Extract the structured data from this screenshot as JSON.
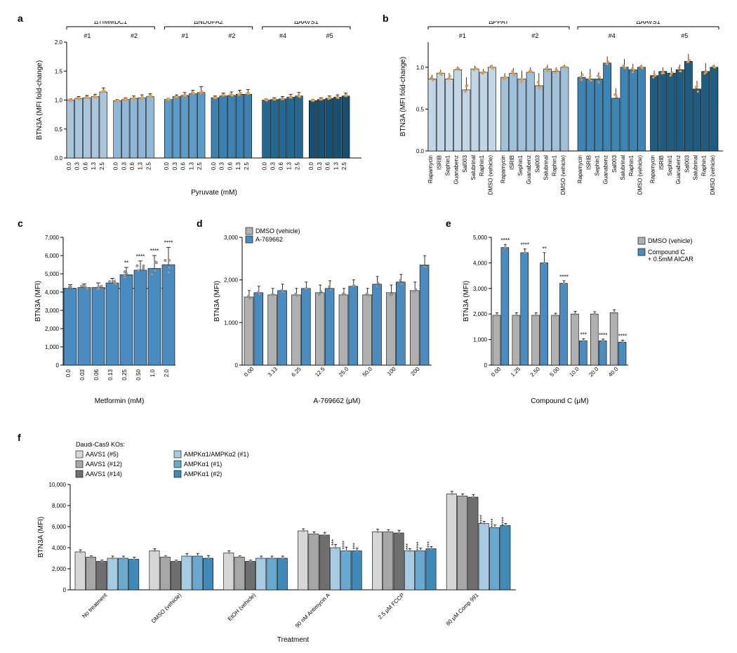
{
  "palette": {
    "groupColors6": [
      "#a9c6de",
      "#8fb8d8",
      "#5c9cc7",
      "#3b82b3",
      "#246994",
      "#184f73"
    ],
    "groupColors4": [
      "#c2d6e6",
      "#a0c1d9",
      "#3d85b4",
      "#1e5c82"
    ],
    "blue": "#4a8cc0",
    "grey": "#b0b0b0",
    "kos6": [
      "#d6d6d6",
      "#a7a7a7",
      "#6f6f6f",
      "#a6cbe3",
      "#6aa9cf",
      "#3f8ab9"
    ]
  },
  "panel_a": {
    "label": "a",
    "ylabel": "BTN3A (MFI fold-change)",
    "xlabel": "Pyruvate (mM)",
    "ylim": [
      0.0,
      2.0
    ],
    "ytick_step": 0.5,
    "doses": [
      "0.0",
      "0.3",
      "0.6",
      "1.3",
      "2.5"
    ],
    "groups": [
      "ΔTIMMDC1",
      "ΔNDUFA2",
      "ΔAAVS1"
    ],
    "subgroups": [
      [
        "#1",
        "#2"
      ],
      [
        "#1",
        "#2"
      ],
      [
        "#4",
        "#5"
      ]
    ],
    "values": [
      [
        [
          1.0,
          1.03,
          1.04,
          1.06,
          1.14
        ],
        [
          0.99,
          1.01,
          1.03,
          1.04,
          1.06
        ]
      ],
      [
        [
          1.01,
          1.06,
          1.08,
          1.11,
          1.13
        ],
        [
          1.04,
          1.07,
          1.08,
          1.1,
          1.1
        ]
      ],
      [
        [
          1.0,
          1.01,
          1.02,
          1.05,
          1.07
        ],
        [
          0.99,
          1.01,
          1.03,
          1.05,
          1.07
        ]
      ]
    ],
    "errors": [
      [
        [
          0.02,
          0.03,
          0.04,
          0.04,
          0.07
        ],
        [
          0.02,
          0.03,
          0.04,
          0.05,
          0.05
        ]
      ],
      [
        [
          0.02,
          0.03,
          0.05,
          0.06,
          0.1
        ],
        [
          0.03,
          0.05,
          0.06,
          0.07,
          0.08
        ]
      ],
      [
        [
          0.02,
          0.03,
          0.04,
          0.05,
          0.06
        ],
        [
          0.02,
          0.03,
          0.04,
          0.04,
          0.05
        ]
      ]
    ]
  },
  "panel_b": {
    "label": "b",
    "ylabel": "BTN3A (MFI fold-change)",
    "ylim": [
      0.0,
      1.3
    ],
    "yticks": [
      0.0,
      0.5,
      1.0
    ],
    "x_labels": [
      "Rapamycin",
      "ISRIB",
      "Sephin1",
      "Guanabenz",
      "Sal003",
      "Salubrinal",
      "Raphin1",
      "DMSO (vehicle)"
    ],
    "groups": [
      "ΔPPAT",
      "ΔAAVS1"
    ],
    "subgroups": [
      [
        "#1",
        "#2"
      ],
      [
        "#4",
        "#5"
      ]
    ],
    "values": [
      [
        [
          0.86,
          0.93,
          0.86,
          0.97,
          0.73,
          0.98,
          0.94,
          1.0
        ],
        [
          0.88,
          0.93,
          0.86,
          0.94,
          0.78,
          0.98,
          0.95,
          1.0
        ]
      ],
      [
        [
          0.88,
          0.86,
          0.86,
          1.05,
          0.63,
          1.0,
          0.97,
          1.0
        ],
        [
          0.9,
          0.95,
          0.93,
          0.97,
          1.07,
          0.74,
          0.95,
          1.0
        ]
      ]
    ],
    "errors": [
      [
        [
          0.05,
          0.04,
          0.07,
          0.04,
          0.15,
          0.04,
          0.04,
          0.03
        ],
        [
          0.05,
          0.06,
          0.1,
          0.06,
          0.15,
          0.05,
          0.05,
          0.03
        ]
      ],
      [
        [
          0.07,
          0.12,
          0.08,
          0.08,
          0.12,
          0.1,
          0.07,
          0.03
        ],
        [
          0.06,
          0.05,
          0.07,
          0.06,
          0.09,
          0.1,
          0.1,
          0.03
        ]
      ]
    ]
  },
  "panel_c": {
    "label": "c",
    "ylabel": "BTN3A (MFI)",
    "xlabel": "Metformin (mM)",
    "ylim": [
      0,
      7000
    ],
    "ytick_step": 1000,
    "doses": [
      "0.0",
      "0.03",
      "0.06",
      "0.13",
      "0.25",
      "0.50",
      "1.0",
      "2.0"
    ],
    "values": [
      4200,
      4250,
      4250,
      4500,
      4950,
      5200,
      5300,
      5500
    ],
    "errors": [
      200,
      200,
      250,
      250,
      400,
      500,
      700,
      950
    ],
    "baseline": 4200,
    "sig": {
      "4": "**",
      "5": "****",
      "6": "****",
      "7": "****"
    }
  },
  "panel_d": {
    "label": "d",
    "ylabel": "BTN3A (MFI)",
    "xlabel": "A-769662 (μM)",
    "ylim": [
      0,
      3000
    ],
    "ytick_step": 1000,
    "doses": [
      "0.00",
      "3.13",
      "6.25",
      "12.5",
      "25.0",
      "50.0",
      "100",
      "200"
    ],
    "legend": [
      {
        "label": "DMSO (vehicle)",
        "color": "grey"
      },
      {
        "label": "A-769662",
        "color": "blue"
      }
    ],
    "values_grey": [
      1600,
      1650,
      1650,
      1700,
      1650,
      1650,
      1700,
      1750
    ],
    "values_blue": [
      1700,
      1750,
      1800,
      1800,
      1850,
      1900,
      1950,
      2350
    ],
    "errors_grey": [
      150,
      150,
      150,
      180,
      150,
      150,
      180,
      200
    ],
    "errors_blue": [
      150,
      150,
      150,
      180,
      150,
      180,
      180,
      220
    ]
  },
  "panel_e": {
    "label": "e",
    "ylabel": "BTN3A (MFI)",
    "xlabel": "Compound C (μM)",
    "ylim": [
      0,
      5000
    ],
    "ytick_step": 1000,
    "doses": [
      "0.00",
      "1.25",
      "2.50",
      "5.00",
      "10.0",
      "20.0",
      "40.0"
    ],
    "legend": [
      {
        "label": "DMSO (vehicle)",
        "color": "grey"
      },
      {
        "label": "Compound C\n+ 0.5mM AICAR",
        "color": "blue"
      }
    ],
    "values_grey": [
      1950,
      1950,
      1950,
      1950,
      2000,
      2000,
      2050
    ],
    "values_blue": [
      4600,
      4400,
      4000,
      3200,
      950,
      950,
      900
    ],
    "errors_grey": [
      100,
      100,
      100,
      80,
      100,
      90,
      120
    ],
    "errors_blue": [
      120,
      150,
      400,
      100,
      80,
      70,
      80
    ],
    "sig_blue": {
      "0": "****",
      "1": "****",
      "2": "**",
      "3": "****",
      "4": "***",
      "5": "****",
      "6": "****"
    },
    "sig_inline": {
      "2": "**"
    }
  },
  "panel_f": {
    "label": "f",
    "ylabel": "BTN3A (MFI)",
    "xlabel": "Treatment",
    "ylim": [
      0,
      10000
    ],
    "ytick_step": 2000,
    "legend_title": "Daudi-Cas9 KOs:",
    "legend": [
      {
        "label": "AAVS1 (#5)",
        "i": 0
      },
      {
        "label": "AAVS1 (#12)",
        "i": 1
      },
      {
        "label": "AAVS1 (#14)",
        "i": 2
      },
      {
        "label": "AMPKα1/AMPKα2 (#1)",
        "i": 3
      },
      {
        "label": "AMPKα1 (#1)",
        "i": 4
      },
      {
        "label": "AMPKα1 (#2)",
        "i": 5
      }
    ],
    "treatments": [
      "No treatment",
      "DMSO (vehicle)",
      "EtOH (vehicle)",
      "90 nM Antimycin A",
      "2.5 μM FCCP",
      "80 μM Comp 991"
    ],
    "values": [
      [
        3600,
        3100,
        2700,
        3000,
        3000,
        2900
      ],
      [
        3700,
        3100,
        2700,
        3200,
        3200,
        3000
      ],
      [
        3500,
        3100,
        2700,
        3000,
        3000,
        3000
      ],
      [
        5600,
        5300,
        5200,
        4000,
        3700,
        3700
      ],
      [
        5500,
        5500,
        5400,
        3700,
        3700,
        3900
      ],
      [
        9100,
        8900,
        8800,
        6300,
        5900,
        6100
      ]
    ],
    "errors": [
      [
        200,
        120,
        120,
        200,
        200,
        200
      ],
      [
        200,
        120,
        120,
        250,
        250,
        250
      ],
      [
        200,
        120,
        120,
        200,
        200,
        200
      ],
      [
        200,
        200,
        250,
        300,
        350,
        250
      ],
      [
        250,
        200,
        250,
        200,
        250,
        200
      ],
      [
        250,
        200,
        250,
        200,
        250,
        200
      ]
    ],
    "sig": {
      "3": {
        "3": "***",
        "4": "****",
        "5": "***"
      },
      "4": {
        "3": "***",
        "4": "****",
        "5": "***"
      },
      "5": {
        "3": "****",
        "4": "****",
        "5": "****"
      }
    },
    "sig_star": {
      "4": {
        "3": "*"
      }
    }
  }
}
